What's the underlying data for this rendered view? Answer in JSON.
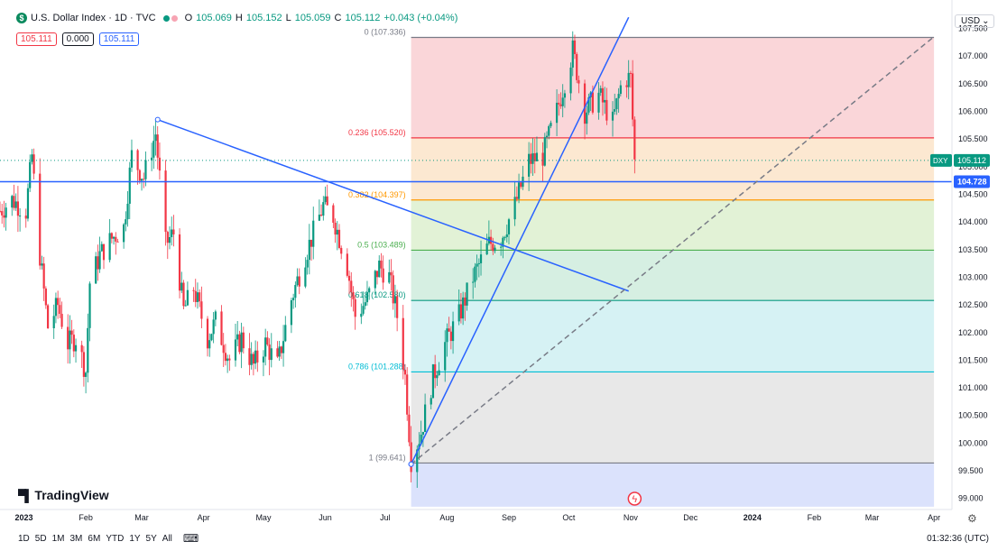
{
  "header": {
    "title": "U.S. Dollar Index · 1D · TVC",
    "o_label": "O",
    "o": "105.069",
    "h_label": "H",
    "h": "105.152",
    "l_label": "L",
    "l": "105.059",
    "c_label": "C",
    "c": "105.112",
    "change": "+0.043 (+0.04%)"
  },
  "price_boxes": {
    "sell": "105.111",
    "spread": "0.000",
    "buy": "105.111"
  },
  "currency": "USD",
  "logo_text": "TradingView",
  "ranges": [
    "1D",
    "5D",
    "1M",
    "3M",
    "6M",
    "YTD",
    "1Y",
    "5Y",
    "All"
  ],
  "clock": "01:32:36 (UTC)",
  "colors": {
    "up": "#089981",
    "down": "#f23645",
    "trend": "#2962ff",
    "bg": "#ffffff"
  },
  "icons": {
    "symbol": "dollar-icon",
    "calendar": "calendar-icon",
    "settings": "gear-icon",
    "event": "lightning-icon"
  },
  "chart_data": {
    "type": "candlestick",
    "y_ticks": [
      "107.500",
      "107.000",
      "106.500",
      "106.000",
      "105.500",
      "105.000",
      "104.500",
      "104.000",
      "103.500",
      "103.000",
      "102.500",
      "102.000",
      "101.500",
      "101.000",
      "100.500",
      "100.000",
      "99.500",
      "99.000"
    ],
    "ylim": [
      98.8,
      107.85
    ],
    "x_start": "2022-12-20",
    "x_end": "2024-04-10",
    "x_ticks": [
      {
        "label": "2023",
        "date": "2023-01-01",
        "bold": true
      },
      {
        "label": "Feb",
        "date": "2023-02-01"
      },
      {
        "label": "Mar",
        "date": "2023-03-01"
      },
      {
        "label": "Apr",
        "date": "2023-04-01"
      },
      {
        "label": "May",
        "date": "2023-05-01"
      },
      {
        "label": "Jun",
        "date": "2023-06-01"
      },
      {
        "label": "Jul",
        "date": "2023-07-01"
      },
      {
        "label": "Aug",
        "date": "2023-08-01"
      },
      {
        "label": "Sep",
        "date": "2023-09-01"
      },
      {
        "label": "Oct",
        "date": "2023-10-01"
      },
      {
        "label": "Nov",
        "date": "2023-11-01"
      },
      {
        "label": "Dec",
        "date": "2023-12-01"
      },
      {
        "label": "2024",
        "date": "2024-01-01",
        "bold": true
      },
      {
        "label": "Feb",
        "date": "2024-02-01"
      },
      {
        "label": "Mar",
        "date": "2024-03-01"
      },
      {
        "label": "Apr",
        "date": "2024-04-01"
      }
    ],
    "price_series": [
      [
        "2022-12-20",
        104.2
      ],
      [
        "2022-12-26",
        104.4
      ],
      [
        "2023-01-02",
        104.2
      ],
      [
        "2023-01-05",
        105.2
      ],
      [
        "2023-01-09",
        103.4
      ],
      [
        "2023-01-13",
        102.1
      ],
      [
        "2023-01-18",
        102.5
      ],
      [
        "2023-01-23",
        101.8
      ],
      [
        "2023-01-27",
        101.9
      ],
      [
        "2023-02-01",
        101.3
      ],
      [
        "2023-02-03",
        102.9
      ],
      [
        "2023-02-08",
        103.4
      ],
      [
        "2023-02-14",
        103.7
      ],
      [
        "2023-02-20",
        103.9
      ],
      [
        "2023-02-24",
        105.2
      ],
      [
        "2023-03-02",
        104.8
      ],
      [
        "2023-03-08",
        105.6
      ],
      [
        "2023-03-13",
        103.6
      ],
      [
        "2023-03-17",
        103.8
      ],
      [
        "2023-03-22",
        102.4
      ],
      [
        "2023-03-27",
        102.8
      ],
      [
        "2023-04-03",
        101.9
      ],
      [
        "2023-04-07",
        102.2
      ],
      [
        "2023-04-14",
        101.5
      ],
      [
        "2023-04-20",
        101.9
      ],
      [
        "2023-04-26",
        101.4
      ],
      [
        "2023-05-02",
        101.8
      ],
      [
        "2023-05-08",
        101.4
      ],
      [
        "2023-05-15",
        102.6
      ],
      [
        "2023-05-22",
        103.4
      ],
      [
        "2023-05-31",
        104.3
      ],
      [
        "2023-06-05",
        104.1
      ],
      [
        "2023-06-12",
        103.2
      ],
      [
        "2023-06-16",
        102.3
      ],
      [
        "2023-06-22",
        102.6
      ],
      [
        "2023-06-28",
        103.2
      ],
      [
        "2023-07-03",
        103.0
      ],
      [
        "2023-07-07",
        102.3
      ],
      [
        "2023-07-11",
        101.2
      ],
      [
        "2023-07-14",
        99.7
      ],
      [
        "2023-07-19",
        100.2
      ],
      [
        "2023-07-25",
        101.2
      ],
      [
        "2023-07-31",
        101.8
      ],
      [
        "2023-08-07",
        102.3
      ],
      [
        "2023-08-14",
        103.0
      ],
      [
        "2023-08-22",
        103.6
      ],
      [
        "2023-08-28",
        103.7
      ],
      [
        "2023-09-04",
        104.3
      ],
      [
        "2023-09-11",
        105.1
      ],
      [
        "2023-09-18",
        105.2
      ],
      [
        "2023-09-25",
        106.0
      ],
      [
        "2023-10-03",
        107.1
      ],
      [
        "2023-10-09",
        106.0
      ],
      [
        "2023-10-16",
        106.3
      ],
      [
        "2023-10-23",
        105.8
      ],
      [
        "2023-10-28",
        106.6
      ],
      [
        "2023-11-01",
        106.6
      ],
      [
        "2023-11-03",
        105.1
      ]
    ],
    "fib": {
      "levels": [
        {
          "ratio": "0",
          "price": 107.336,
          "label": "0 (107.336)",
          "color": "#787b86",
          "fill": "#f8c8cc"
        },
        {
          "ratio": "0.236",
          "price": 105.52,
          "label": "0.236 (105.520)",
          "color": "#f23645",
          "fill": "#fbe0c2"
        },
        {
          "ratio": "0.382",
          "price": 104.397,
          "label": "0.382 (104.397)",
          "color": "#ff9800",
          "fill": "#d8eec8"
        },
        {
          "ratio": "0.5",
          "price": 103.489,
          "label": "0.5 (103.489)",
          "color": "#4caf50",
          "fill": "#c8ead8"
        },
        {
          "ratio": "0.618",
          "price": 102.58,
          "label": "0.618 (102.580)",
          "color": "#089981",
          "fill": "#c8eef0"
        },
        {
          "ratio": "0.786",
          "price": 101.288,
          "label": "0.786 (101.288)",
          "color": "#00bcd4",
          "fill": "#e0e0e0"
        },
        {
          "ratio": "1",
          "price": 99.641,
          "label": "1 (99.641)",
          "color": "#787b86",
          "fill": "#cfd8fb"
        }
      ],
      "start_date": "2023-07-14",
      "end_date": "2024-04-01",
      "bottom_price": 98.85
    },
    "trend_lines": [
      {
        "from": [
          "2023-03-09",
          105.85
        ],
        "to": [
          "2023-10-31",
          102.75
        ],
        "style": "solid"
      },
      {
        "from": [
          "2023-07-14",
          99.62
        ],
        "to": [
          "2023-10-31",
          107.7
        ],
        "style": "solid"
      },
      {
        "from": [
          "2023-07-14",
          99.62
        ],
        "to": [
          "2024-04-01",
          107.35
        ],
        "style": "dashed"
      }
    ],
    "horizontal_line": {
      "price": 104.728,
      "label": "104.728"
    },
    "last_price": {
      "price": 105.112,
      "symbol": "DXY",
      "label": "105.112"
    }
  }
}
